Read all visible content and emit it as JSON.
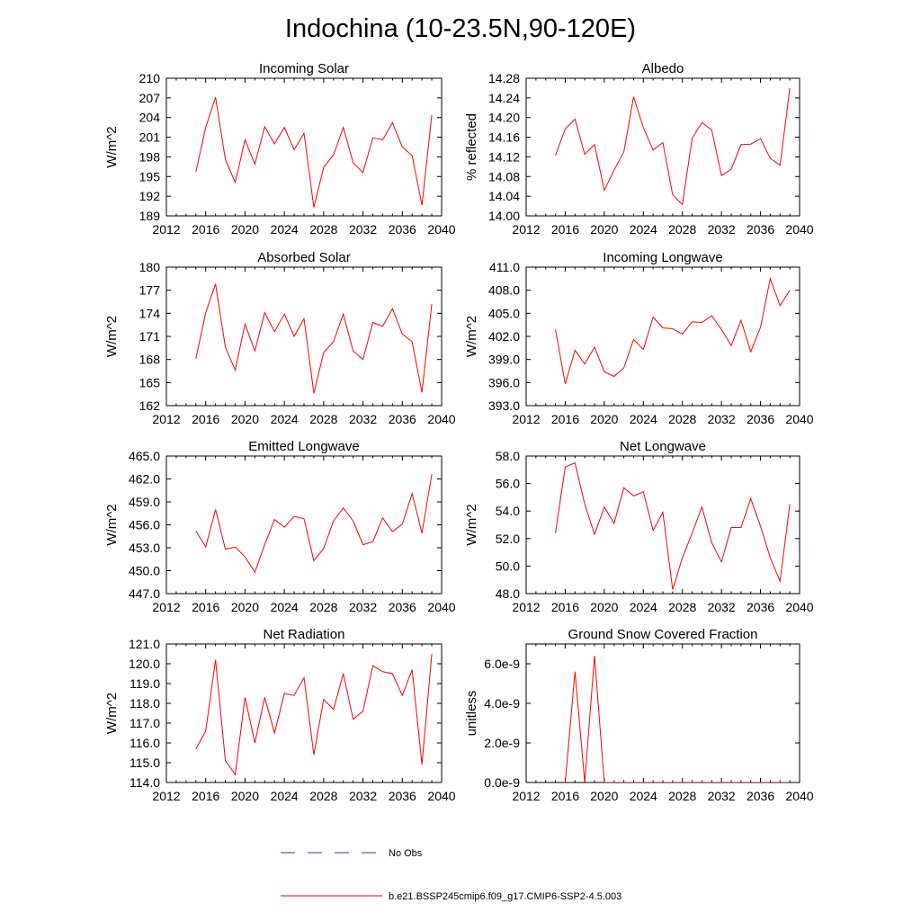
{
  "title": "Indochina (10-23.5N,90-120E)",
  "series_color": "#ff0000",
  "obs_color": "#3333cc",
  "legend": [
    {
      "label": "No Obs",
      "style": "dashed",
      "color": "#3333cc"
    },
    {
      "label": "b.e21.BSSP245cmip6.f09_g17.CMIP6-SSP2-4.5.003",
      "style": "solid",
      "color": "#ff0000"
    }
  ],
  "chart_data": [
    {
      "type": "line",
      "title": "Incoming Solar",
      "ylabel": "W/m^2",
      "xlim": [
        2012,
        2040
      ],
      "xticks": [
        "2012",
        "2016",
        "2020",
        "2024",
        "2028",
        "2032",
        "2036",
        "2040"
      ],
      "ylim": [
        189,
        210
      ],
      "yticks": [
        "189",
        "192",
        "195",
        "198",
        "201",
        "204",
        "207",
        "210"
      ],
      "x": [
        2015,
        2016,
        2017,
        2018,
        2019,
        2020,
        2021,
        2022,
        2023,
        2024,
        2025,
        2026,
        2027,
        2028,
        2029,
        2030,
        2031,
        2032,
        2033,
        2034,
        2035,
        2036,
        2037,
        2038,
        2039
      ],
      "values": [
        195.7,
        202.5,
        207.1,
        197.6,
        194.1,
        200.6,
        196.9,
        202.6,
        200.0,
        202.5,
        199.1,
        201.6,
        190.3,
        196.4,
        198.3,
        202.5,
        197.1,
        195.6,
        200.9,
        200.6,
        203.2,
        199.5,
        198.2,
        190.6,
        204.4
      ]
    },
    {
      "type": "line",
      "title": "Albedo",
      "ylabel": "% reflected",
      "xlim": [
        2012,
        2040
      ],
      "xticks": [
        "2012",
        "2016",
        "2020",
        "2024",
        "2028",
        "2032",
        "2036",
        "2040"
      ],
      "ylim": [
        14.0,
        14.28
      ],
      "yticks": [
        "14.00",
        "14.04",
        "14.08",
        "14.12",
        "14.16",
        "14.20",
        "14.24",
        "14.28"
      ],
      "x": [
        2015,
        2016,
        2017,
        2018,
        2019,
        2020,
        2021,
        2022,
        2023,
        2024,
        2025,
        2026,
        2027,
        2028,
        2029,
        2030,
        2031,
        2032,
        2033,
        2034,
        2035,
        2036,
        2037,
        2038,
        2039
      ],
      "values": [
        14.123,
        14.177,
        14.197,
        14.125,
        14.145,
        14.052,
        14.093,
        14.13,
        14.242,
        14.18,
        14.134,
        14.149,
        14.043,
        14.023,
        14.158,
        14.19,
        14.175,
        14.082,
        14.095,
        14.145,
        14.146,
        14.157,
        14.117,
        14.103,
        14.26
      ]
    },
    {
      "type": "line",
      "title": "Absorbed Solar",
      "ylabel": "W/m^2",
      "xlim": [
        2012,
        2040
      ],
      "xticks": [
        "2012",
        "2016",
        "2020",
        "2024",
        "2028",
        "2032",
        "2036",
        "2040"
      ],
      "ylim": [
        162,
        180
      ],
      "yticks": [
        "162",
        "165",
        "168",
        "171",
        "174",
        "177",
        "180"
      ],
      "x": [
        2015,
        2016,
        2017,
        2018,
        2019,
        2020,
        2021,
        2022,
        2023,
        2024,
        2025,
        2026,
        2027,
        2028,
        2029,
        2030,
        2031,
        2032,
        2033,
        2034,
        2035,
        2036,
        2037,
        2038,
        2039
      ],
      "values": [
        168.1,
        174.1,
        177.8,
        169.6,
        166.6,
        172.6,
        169.1,
        174.1,
        171.6,
        173.9,
        171.0,
        173.3,
        163.6,
        168.9,
        170.3,
        173.9,
        169.1,
        168.0,
        172.8,
        172.3,
        174.6,
        171.3,
        170.3,
        163.7,
        175.2
      ]
    },
    {
      "type": "line",
      "title": "Incoming Longwave",
      "ylabel": "W/m^2",
      "xlim": [
        2012,
        2040
      ],
      "xticks": [
        "2012",
        "2016",
        "2020",
        "2024",
        "2028",
        "2032",
        "2036",
        "2040"
      ],
      "ylim": [
        393,
        411
      ],
      "yticks": [
        "393.0",
        "396.0",
        "399.0",
        "402.0",
        "405.0",
        "408.0",
        "411.0"
      ],
      "x": [
        2015,
        2016,
        2017,
        2018,
        2019,
        2020,
        2021,
        2022,
        2023,
        2024,
        2025,
        2026,
        2027,
        2028,
        2029,
        2030,
        2031,
        2032,
        2033,
        2034,
        2035,
        2036,
        2037,
        2038,
        2039
      ],
      "values": [
        402.9,
        395.8,
        400.2,
        398.4,
        400.6,
        397.4,
        396.8,
        397.9,
        401.6,
        400.3,
        404.5,
        403.1,
        403.0,
        402.3,
        403.9,
        403.8,
        404.7,
        402.9,
        400.8,
        404.1,
        400.0,
        403.2,
        409.5,
        406.0,
        408.0
      ]
    },
    {
      "type": "line",
      "title": "Emitted Longwave",
      "ylabel": "W/m^2",
      "xlim": [
        2012,
        2040
      ],
      "xticks": [
        "2012",
        "2016",
        "2020",
        "2024",
        "2028",
        "2032",
        "2036",
        "2040"
      ],
      "ylim": [
        447,
        465
      ],
      "yticks": [
        "447.0",
        "450.0",
        "453.0",
        "456.0",
        "459.0",
        "462.0",
        "465.0"
      ],
      "x": [
        2015,
        2016,
        2017,
        2018,
        2019,
        2020,
        2021,
        2022,
        2023,
        2024,
        2025,
        2026,
        2027,
        2028,
        2029,
        2030,
        2031,
        2032,
        2033,
        2034,
        2035,
        2036,
        2037,
        2038,
        2039
      ],
      "values": [
        455.2,
        453.1,
        458.0,
        452.8,
        453.1,
        451.8,
        449.8,
        453.4,
        456.7,
        455.7,
        457.1,
        456.8,
        451.3,
        452.9,
        456.5,
        458.2,
        456.5,
        453.4,
        453.8,
        456.9,
        455.1,
        456.1,
        460.1,
        454.9,
        462.6
      ]
    },
    {
      "type": "line",
      "title": "Net Longwave",
      "ylabel": "W/m^2",
      "xlim": [
        2012,
        2040
      ],
      "xticks": [
        "2012",
        "2016",
        "2020",
        "2024",
        "2028",
        "2032",
        "2036",
        "2040"
      ],
      "ylim": [
        48,
        58
      ],
      "yticks": [
        "48.0",
        "50.0",
        "52.0",
        "54.0",
        "56.0",
        "58.0"
      ],
      "x": [
        2015,
        2016,
        2017,
        2018,
        2019,
        2020,
        2021,
        2022,
        2023,
        2024,
        2025,
        2026,
        2027,
        2028,
        2029,
        2030,
        2031,
        2032,
        2033,
        2034,
        2035,
        2036,
        2037,
        2038,
        2039
      ],
      "values": [
        52.4,
        57.2,
        57.5,
        54.5,
        52.3,
        54.3,
        53.1,
        55.7,
        55.1,
        55.4,
        52.6,
        53.9,
        48.3,
        50.6,
        52.4,
        54.3,
        51.7,
        50.3,
        52.8,
        52.8,
        54.9,
        52.9,
        50.6,
        48.9,
        54.5
      ]
    },
    {
      "type": "line",
      "title": "Net Radiation",
      "ylabel": "W/m^2",
      "xlim": [
        2012,
        2040
      ],
      "xticks": [
        "2012",
        "2016",
        "2020",
        "2024",
        "2028",
        "2032",
        "2036",
        "2040"
      ],
      "ylim": [
        114,
        121
      ],
      "yticks": [
        "114.0",
        "115.0",
        "116.0",
        "117.0",
        "118.0",
        "119.0",
        "120.0",
        "121.0"
      ],
      "x": [
        2015,
        2016,
        2017,
        2018,
        2019,
        2020,
        2021,
        2022,
        2023,
        2024,
        2025,
        2026,
        2027,
        2028,
        2029,
        2030,
        2031,
        2032,
        2033,
        2034,
        2035,
        2036,
        2037,
        2038,
        2039
      ],
      "values": [
        115.7,
        116.6,
        120.2,
        115.1,
        114.4,
        118.3,
        116.0,
        118.3,
        116.5,
        118.5,
        118.4,
        119.3,
        115.4,
        118.2,
        117.7,
        119.5,
        117.2,
        117.6,
        119.9,
        119.6,
        119.5,
        118.4,
        119.7,
        114.9,
        120.5
      ]
    },
    {
      "type": "line",
      "title": "Ground Snow Covered Fraction",
      "ylabel": "unitless",
      "xlim": [
        2012,
        2040
      ],
      "xticks": [
        "2012",
        "2016",
        "2020",
        "2024",
        "2028",
        "2032",
        "2036",
        "2040"
      ],
      "ylim": [
        0,
        7e-09
      ],
      "ytick_values": [
        0,
        2e-09,
        4e-09,
        6e-09
      ],
      "yticks": [
        "0.0e-9",
        "2.0e-9",
        "4.0e-9",
        "6.0e-9"
      ],
      "x": [
        2016,
        2017,
        2018,
        2019,
        2020,
        2021,
        2022,
        2023,
        2024,
        2025,
        2026,
        2027,
        2028,
        2029,
        2030,
        2031,
        2032,
        2033,
        2034,
        2035,
        2036,
        2037,
        2038,
        2039
      ],
      "values": [
        0,
        5.6e-09,
        0,
        6.4e-09,
        0,
        0,
        0,
        0,
        0,
        0,
        0,
        0,
        0,
        0,
        0,
        0,
        0,
        0,
        0,
        0,
        0,
        0,
        0,
        0
      ]
    }
  ]
}
